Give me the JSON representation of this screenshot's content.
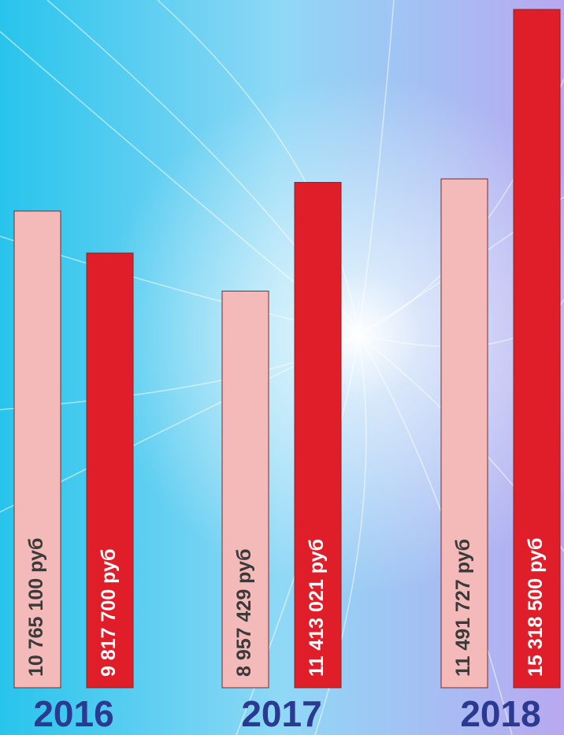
{
  "chart_data": {
    "type": "bar",
    "categories": [
      "2016",
      "2017",
      "2018"
    ],
    "series": [
      {
        "color": "#f4b9b9",
        "values": [
          10765100,
          8957429,
          11491727
        ],
        "value_labels": [
          "10 765 100 руб",
          "8 957 429 руб",
          "11 491 727 руб"
        ]
      },
      {
        "color": "#e01e2a",
        "values": [
          9817700,
          11413021,
          15318500
        ],
        "value_labels": [
          "9 817 700 руб",
          "11 413 021 руб",
          "15 318 500 руб"
        ]
      }
    ]
  }
}
